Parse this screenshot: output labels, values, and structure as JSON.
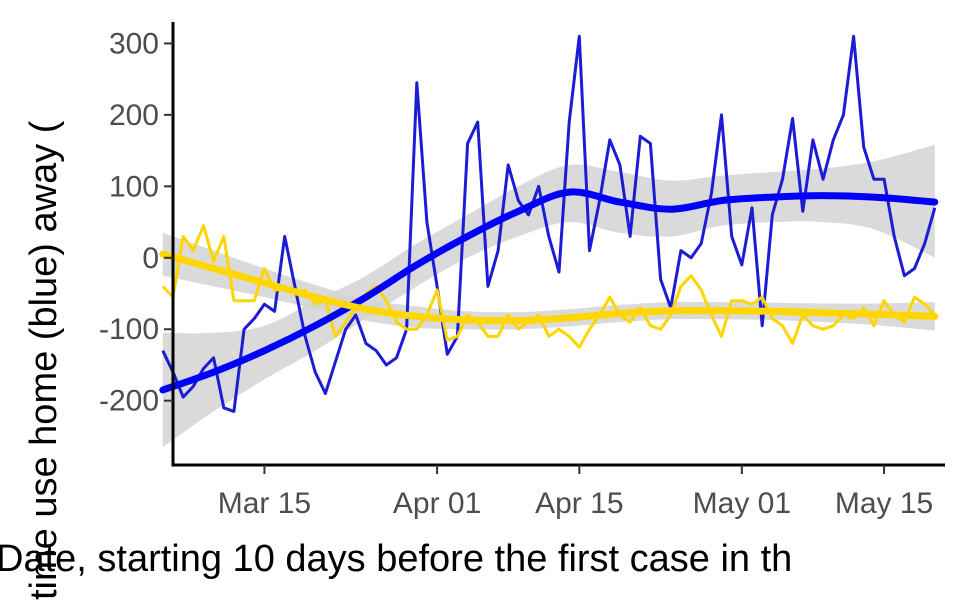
{
  "chart_data": {
    "type": "line",
    "title": "",
    "xlabel": "Date, starting 10 days before the first case in th",
    "ylabel": "time use home (blue) away (",
    "x_axis": {
      "type": "date",
      "range": [
        "2020-03-06",
        "2020-05-21"
      ],
      "ticks": [
        {
          "date": "2020-03-15",
          "label": "Mar 15"
        },
        {
          "date": "2020-04-01",
          "label": "Apr 01"
        },
        {
          "date": "2020-04-15",
          "label": "Apr 15"
        },
        {
          "date": "2020-05-01",
          "label": "May 01"
        },
        {
          "date": "2020-05-15",
          "label": "May 15"
        }
      ]
    },
    "y_axis": {
      "range": [
        -290,
        330
      ],
      "ticks": [
        {
          "value": 300,
          "label": "300"
        },
        {
          "value": 200,
          "label": "200"
        },
        {
          "value": 100,
          "label": "100"
        },
        {
          "value": 0,
          "label": "0"
        },
        {
          "value": -100,
          "label": "-100"
        },
        {
          "value": -200,
          "label": "-200"
        }
      ]
    },
    "grid": false,
    "legend": "none",
    "colors": {
      "home_raw": "#1c1cd6",
      "home_smooth": "#0000ff",
      "away_raw": "#ffd500",
      "away_smooth": "#ffd700",
      "confidence_band": "#d3d3d3",
      "axis": "#000000"
    },
    "series": [
      {
        "kind": "raw",
        "color_key": "home_raw",
        "points": [
          [
            "2020-03-05",
            -130
          ],
          [
            "2020-03-06",
            -160
          ],
          [
            "2020-03-07",
            -195
          ],
          [
            "2020-03-08",
            -180
          ],
          [
            "2020-03-09",
            -155
          ],
          [
            "2020-03-10",
            -140
          ],
          [
            "2020-03-11",
            -210
          ],
          [
            "2020-03-12",
            -215
          ],
          [
            "2020-03-13",
            -100
          ],
          [
            "2020-03-14",
            -85
          ],
          [
            "2020-03-15",
            -65
          ],
          [
            "2020-03-16",
            -75
          ],
          [
            "2020-03-17",
            30
          ],
          [
            "2020-03-18",
            -40
          ],
          [
            "2020-03-19",
            -110
          ],
          [
            "2020-03-20",
            -160
          ],
          [
            "2020-03-21",
            -190
          ],
          [
            "2020-03-22",
            -145
          ],
          [
            "2020-03-23",
            -100
          ],
          [
            "2020-03-24",
            -80
          ],
          [
            "2020-03-25",
            -120
          ],
          [
            "2020-03-26",
            -130
          ],
          [
            "2020-03-27",
            -150
          ],
          [
            "2020-03-28",
            -140
          ],
          [
            "2020-03-29",
            -100
          ],
          [
            "2020-03-30",
            245
          ],
          [
            "2020-03-31",
            50
          ],
          [
            "2020-04-01",
            -40
          ],
          [
            "2020-04-02",
            -135
          ],
          [
            "2020-04-03",
            -110
          ],
          [
            "2020-04-04",
            160
          ],
          [
            "2020-04-05",
            190
          ],
          [
            "2020-04-06",
            -40
          ],
          [
            "2020-04-07",
            10
          ],
          [
            "2020-04-08",
            130
          ],
          [
            "2020-04-09",
            80
          ],
          [
            "2020-04-10",
            60
          ],
          [
            "2020-04-11",
            100
          ],
          [
            "2020-04-12",
            30
          ],
          [
            "2020-04-13",
            -20
          ],
          [
            "2020-04-14",
            190
          ],
          [
            "2020-04-15",
            310
          ],
          [
            "2020-04-16",
            10
          ],
          [
            "2020-04-17",
            80
          ],
          [
            "2020-04-18",
            165
          ],
          [
            "2020-04-19",
            130
          ],
          [
            "2020-04-20",
            30
          ],
          [
            "2020-04-21",
            170
          ],
          [
            "2020-04-22",
            160
          ],
          [
            "2020-04-23",
            -30
          ],
          [
            "2020-04-24",
            -70
          ],
          [
            "2020-04-25",
            10
          ],
          [
            "2020-04-26",
            0
          ],
          [
            "2020-04-27",
            20
          ],
          [
            "2020-04-28",
            90
          ],
          [
            "2020-04-29",
            200
          ],
          [
            "2020-04-30",
            30
          ],
          [
            "2020-05-01",
            -10
          ],
          [
            "2020-05-02",
            70
          ],
          [
            "2020-05-03",
            -95
          ],
          [
            "2020-05-04",
            60
          ],
          [
            "2020-05-05",
            110
          ],
          [
            "2020-05-06",
            195
          ],
          [
            "2020-05-07",
            65
          ],
          [
            "2020-05-08",
            165
          ],
          [
            "2020-05-09",
            110
          ],
          [
            "2020-05-10",
            165
          ],
          [
            "2020-05-11",
            200
          ],
          [
            "2020-05-12",
            310
          ],
          [
            "2020-05-13",
            155
          ],
          [
            "2020-05-14",
            110
          ],
          [
            "2020-05-15",
            110
          ],
          [
            "2020-05-16",
            30
          ],
          [
            "2020-05-17",
            -25
          ],
          [
            "2020-05-18",
            -15
          ],
          [
            "2020-05-19",
            20
          ],
          [
            "2020-05-20",
            70
          ]
        ]
      },
      {
        "kind": "smooth",
        "color_key": "home_smooth",
        "band": true,
        "points": [
          [
            "2020-03-05",
            -185,
            -265,
            -105
          ],
          [
            "2020-03-10",
            -160,
            -215,
            -105
          ],
          [
            "2020-03-15",
            -130,
            -170,
            -95
          ],
          [
            "2020-03-20",
            -95,
            -130,
            -60
          ],
          [
            "2020-03-25",
            -55,
            -85,
            -25
          ],
          [
            "2020-03-30",
            -10,
            -40,
            20
          ],
          [
            "2020-04-04",
            30,
            0,
            60
          ],
          [
            "2020-04-09",
            65,
            30,
            100
          ],
          [
            "2020-04-14",
            92,
            50,
            130
          ],
          [
            "2020-04-19",
            78,
            35,
            120
          ],
          [
            "2020-04-24",
            68,
            30,
            108
          ],
          [
            "2020-04-29",
            80,
            45,
            115
          ],
          [
            "2020-05-04",
            85,
            50,
            120
          ],
          [
            "2020-05-09",
            87,
            50,
            125
          ],
          [
            "2020-05-14",
            85,
            40,
            135
          ],
          [
            "2020-05-20",
            78,
            0,
            158
          ]
        ]
      },
      {
        "kind": "raw",
        "color_key": "away_raw",
        "points": [
          [
            "2020-03-05",
            -40
          ],
          [
            "2020-03-06",
            -55
          ],
          [
            "2020-03-07",
            30
          ],
          [
            "2020-03-08",
            10
          ],
          [
            "2020-03-09",
            45
          ],
          [
            "2020-03-10",
            -5
          ],
          [
            "2020-03-11",
            30
          ],
          [
            "2020-03-12",
            -60
          ],
          [
            "2020-03-13",
            -60
          ],
          [
            "2020-03-14",
            -60
          ],
          [
            "2020-03-15",
            -15
          ],
          [
            "2020-03-16",
            -45
          ],
          [
            "2020-03-17",
            -45
          ],
          [
            "2020-03-18",
            -50
          ],
          [
            "2020-03-19",
            -45
          ],
          [
            "2020-03-20",
            -65
          ],
          [
            "2020-03-21",
            -60
          ],
          [
            "2020-03-22",
            -110
          ],
          [
            "2020-03-23",
            -90
          ],
          [
            "2020-03-24",
            -70
          ],
          [
            "2020-03-25",
            -50
          ],
          [
            "2020-03-26",
            -40
          ],
          [
            "2020-03-27",
            -60
          ],
          [
            "2020-03-28",
            -90
          ],
          [
            "2020-03-29",
            -100
          ],
          [
            "2020-03-30",
            -100
          ],
          [
            "2020-03-31",
            -80
          ],
          [
            "2020-04-01",
            -45
          ],
          [
            "2020-04-02",
            -115
          ],
          [
            "2020-04-03",
            -110
          ],
          [
            "2020-04-04",
            -80
          ],
          [
            "2020-04-05",
            -90
          ],
          [
            "2020-04-06",
            -110
          ],
          [
            "2020-04-07",
            -110
          ],
          [
            "2020-04-08",
            -80
          ],
          [
            "2020-04-09",
            -100
          ],
          [
            "2020-04-10",
            -90
          ],
          [
            "2020-04-11",
            -80
          ],
          [
            "2020-04-12",
            -110
          ],
          [
            "2020-04-13",
            -100
          ],
          [
            "2020-04-14",
            -110
          ],
          [
            "2020-04-15",
            -125
          ],
          [
            "2020-04-16",
            -100
          ],
          [
            "2020-04-17",
            -80
          ],
          [
            "2020-04-18",
            -55
          ],
          [
            "2020-04-19",
            -80
          ],
          [
            "2020-04-20",
            -90
          ],
          [
            "2020-04-21",
            -70
          ],
          [
            "2020-04-22",
            -95
          ],
          [
            "2020-04-23",
            -100
          ],
          [
            "2020-04-24",
            -80
          ],
          [
            "2020-04-25",
            -40
          ],
          [
            "2020-04-26",
            -25
          ],
          [
            "2020-04-27",
            -45
          ],
          [
            "2020-04-28",
            -80
          ],
          [
            "2020-04-29",
            -110
          ],
          [
            "2020-04-30",
            -60
          ],
          [
            "2020-05-01",
            -60
          ],
          [
            "2020-05-02",
            -65
          ],
          [
            "2020-05-03",
            -55
          ],
          [
            "2020-05-04",
            -85
          ],
          [
            "2020-05-05",
            -95
          ],
          [
            "2020-05-06",
            -120
          ],
          [
            "2020-05-07",
            -80
          ],
          [
            "2020-05-08",
            -95
          ],
          [
            "2020-05-09",
            -100
          ],
          [
            "2020-05-10",
            -95
          ],
          [
            "2020-05-11",
            -80
          ],
          [
            "2020-05-12",
            -85
          ],
          [
            "2020-05-13",
            -70
          ],
          [
            "2020-05-14",
            -95
          ],
          [
            "2020-05-15",
            -60
          ],
          [
            "2020-05-16",
            -80
          ],
          [
            "2020-05-17",
            -90
          ],
          [
            "2020-05-18",
            -55
          ],
          [
            "2020-05-19",
            -65
          ],
          [
            "2020-05-20",
            -80
          ]
        ]
      },
      {
        "kind": "smooth",
        "color_key": "away_smooth",
        "band": true,
        "points": [
          [
            "2020-03-05",
            5,
            -25,
            35
          ],
          [
            "2020-03-10",
            -15,
            -40,
            10
          ],
          [
            "2020-03-15",
            -35,
            -55,
            -15
          ],
          [
            "2020-03-20",
            -55,
            -72,
            -38
          ],
          [
            "2020-03-25",
            -72,
            -88,
            -58
          ],
          [
            "2020-03-30",
            -82,
            -98,
            -68
          ],
          [
            "2020-04-04",
            -87,
            -100,
            -75
          ],
          [
            "2020-04-09",
            -88,
            -100,
            -76
          ],
          [
            "2020-04-14",
            -84,
            -96,
            -72
          ],
          [
            "2020-04-19",
            -78,
            -90,
            -66
          ],
          [
            "2020-04-24",
            -74,
            -86,
            -62
          ],
          [
            "2020-04-29",
            -74,
            -86,
            -62
          ],
          [
            "2020-05-04",
            -75,
            -87,
            -63
          ],
          [
            "2020-05-09",
            -77,
            -90,
            -64
          ],
          [
            "2020-05-14",
            -79,
            -94,
            -64
          ],
          [
            "2020-05-20",
            -82,
            -102,
            -62
          ]
        ]
      }
    ]
  }
}
